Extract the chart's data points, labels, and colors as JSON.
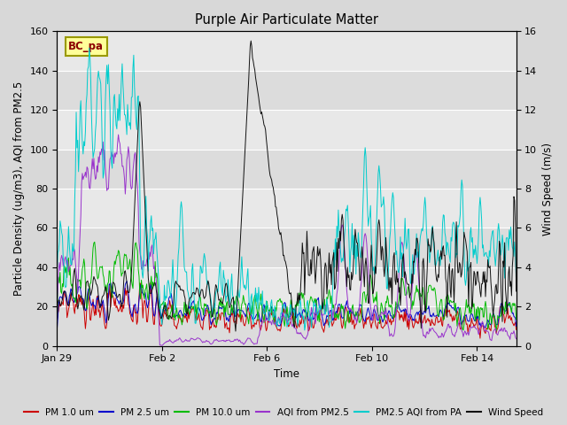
{
  "title": "Purple Air Particulate Matter",
  "xlabel": "Time",
  "ylabel_left": "Particle Density (ug/m3), AQI from PM2.5",
  "ylabel_right": "Wind Speed (m/s)",
  "annotation_text": "BC_pa",
  "annotation_color": "#8B0000",
  "annotation_bg": "#FFFF99",
  "annotation_border": "#999900",
  "ylim_left": [
    0,
    160
  ],
  "ylim_right": [
    0,
    16
  ],
  "yticks_left": [
    0,
    20,
    40,
    60,
    80,
    100,
    120,
    140,
    160
  ],
  "yticks_right": [
    0,
    2,
    4,
    6,
    8,
    10,
    12,
    14,
    16
  ],
  "xtick_labels": [
    "Jan 29",
    "Feb 2",
    "Feb 6",
    "Feb 10",
    "Feb 14"
  ],
  "colors": {
    "PM1": "#CC0000",
    "PM25": "#0000CC",
    "PM10": "#00BB00",
    "AQI": "#9933CC",
    "PM25_AQI": "#00CCCC",
    "Wind": "#111111"
  },
  "legend_labels": [
    "PM 1.0 um",
    "PM 2.5 um",
    "PM 10.0 um",
    "AQI from PM2.5",
    "PM2.5 AQI from PA",
    "Wind Speed"
  ],
  "background_color": "#D8D8D8",
  "plot_bg": "#E8E8E8",
  "grid_color": "#FFFFFF",
  "n_points": 600
}
